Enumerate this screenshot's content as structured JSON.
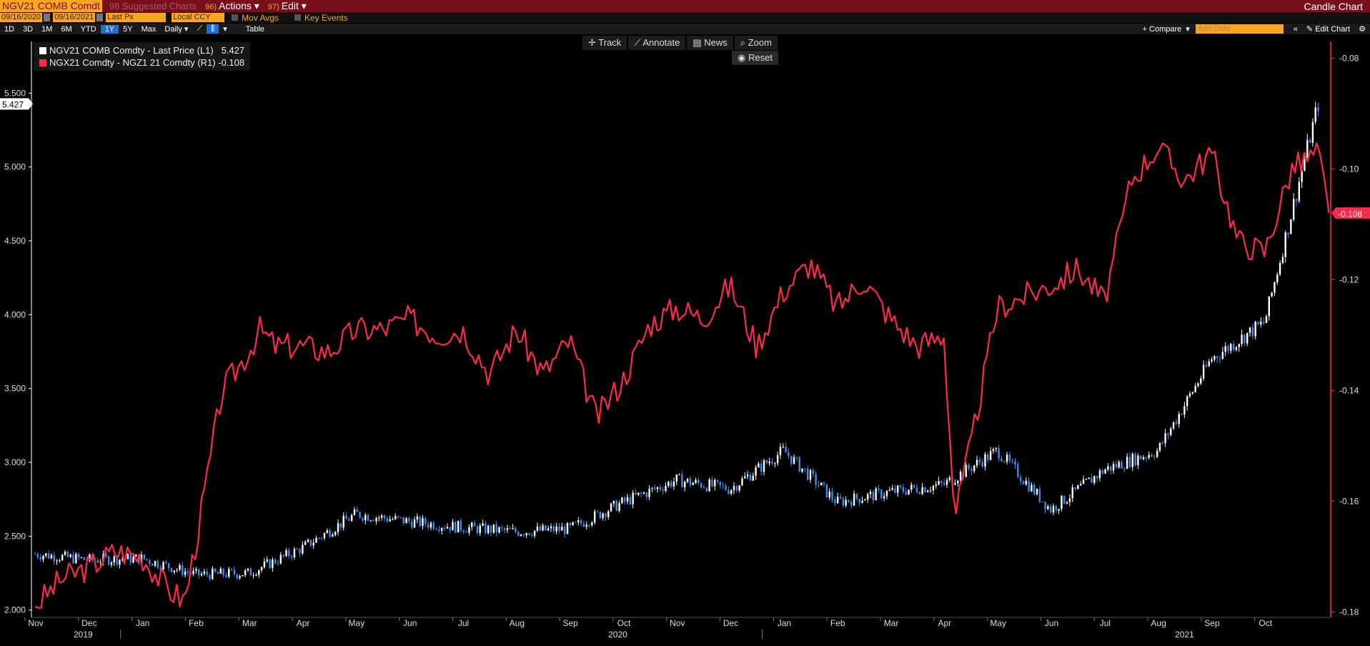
{
  "header": {
    "ticker": "NGV21 COMB Comdt",
    "suggested": "98 Suggested Charts",
    "actions_num": "96)",
    "actions_label": "Actions",
    "edit_num": "97)",
    "edit_label": "Edit",
    "chart_type": "Candle Chart"
  },
  "params": {
    "start_date": "09/16/2020",
    "end_date": "09/16/2021",
    "field": "Last Px",
    "currency": "Local CCY",
    "mov_avgs": "Mov Avgs",
    "key_events": "Key Events"
  },
  "periods": [
    "1D",
    "3D",
    "1M",
    "6M",
    "YTD",
    "1Y",
    "5Y",
    "Max"
  ],
  "selected_period": "1Y",
  "frequency": "Daily",
  "table_label": "Table",
  "compare_label": "+ Compare",
  "add_data_placeholder": "Add Data",
  "edit_chart_label": "Edit Chart",
  "tools": [
    "Track",
    "Annotate",
    "News",
    "Zoom"
  ],
  "reset_label": "Reset",
  "colors": {
    "left_series": "#ffffff",
    "right_series": "#ff2a4a",
    "up_candle": "#ffffff",
    "down_candle": "#3a8ef0",
    "accent": "#f5a623"
  },
  "chart_data": {
    "type": "line",
    "x_tick_labels": [
      "Nov",
      "Dec",
      "Jan",
      "Feb",
      "Mar",
      "Apr",
      "May",
      "Jun",
      "Jul",
      "Aug",
      "Sep",
      "Oct",
      "Nov",
      "Dec",
      "Jan",
      "Feb",
      "Mar",
      "Apr",
      "May",
      "Jun",
      "Jul",
      "Aug",
      "Sep",
      "Oct"
    ],
    "year_labels": [
      "2019",
      "2020",
      "2021"
    ],
    "y_left_ticks": [
      "2.000",
      "2.500",
      "3.000",
      "3.500",
      "4.000",
      "4.500",
      "5.000",
      "5.500"
    ],
    "y_left_range": [
      1.95,
      5.85
    ],
    "y_right_ticks": [
      "-0.08",
      "-0.10",
      "-0.12",
      "-0.14",
      "-0.16",
      "-0.18"
    ],
    "y_right_range": [
      -0.181,
      -0.077
    ],
    "series": [
      {
        "name": "NGV21 COMB Comdty - Last Price (L1)",
        "last": "5.427",
        "axis": "left",
        "style": "candle",
        "x": [
          0,
          1,
          2,
          3,
          4,
          5,
          6,
          7,
          8,
          9,
          10,
          11,
          12,
          13,
          14,
          15,
          16,
          17,
          18,
          19,
          20,
          21,
          22,
          23,
          24
        ],
        "values": [
          2.38,
          2.34,
          2.35,
          2.24,
          2.25,
          2.42,
          2.65,
          2.6,
          2.56,
          2.53,
          2.55,
          2.73,
          2.88,
          2.82,
          3.08,
          2.73,
          2.8,
          2.85,
          3.08,
          2.68,
          2.95,
          3.08,
          3.7,
          3.95,
          5.43
        ]
      },
      {
        "name": "NGX21 Comdty - NGZ1 21  Comdty (R1)",
        "last": "-0.108",
        "axis": "right",
        "style": "line",
        "x": [
          0,
          0.5,
          1,
          1.5,
          2,
          2.5,
          2.8,
          3,
          3.5,
          4,
          4.2,
          4.5,
          5,
          5.5,
          6,
          6.5,
          7,
          7.5,
          8,
          8.5,
          9,
          9.5,
          10,
          10.5,
          11,
          11.5,
          12,
          12.5,
          13,
          13.5,
          14,
          14.5,
          15,
          15.5,
          16,
          16.5,
          17,
          17.2,
          17.5,
          18,
          18.5,
          19,
          19.5,
          20,
          20.5,
          21,
          21.5,
          22,
          22.5,
          23,
          23.5,
          24,
          24.2
        ],
        "values": [
          -0.179,
          -0.174,
          -0.172,
          -0.169,
          -0.17,
          -0.176,
          -0.178,
          -0.168,
          -0.14,
          -0.133,
          -0.129,
          -0.132,
          -0.132,
          -0.133,
          -0.129,
          -0.129,
          -0.127,
          -0.13,
          -0.129,
          -0.137,
          -0.129,
          -0.137,
          -0.131,
          -0.145,
          -0.138,
          -0.128,
          -0.125,
          -0.127,
          -0.121,
          -0.132,
          -0.122,
          -0.117,
          -0.125,
          -0.12,
          -0.127,
          -0.132,
          -0.13,
          -0.163,
          -0.15,
          -0.125,
          -0.123,
          -0.121,
          -0.118,
          -0.124,
          -0.102,
          -0.096,
          -0.102,
          -0.097,
          -0.113,
          -0.115,
          -0.1,
          -0.097,
          -0.108
        ]
      }
    ]
  }
}
